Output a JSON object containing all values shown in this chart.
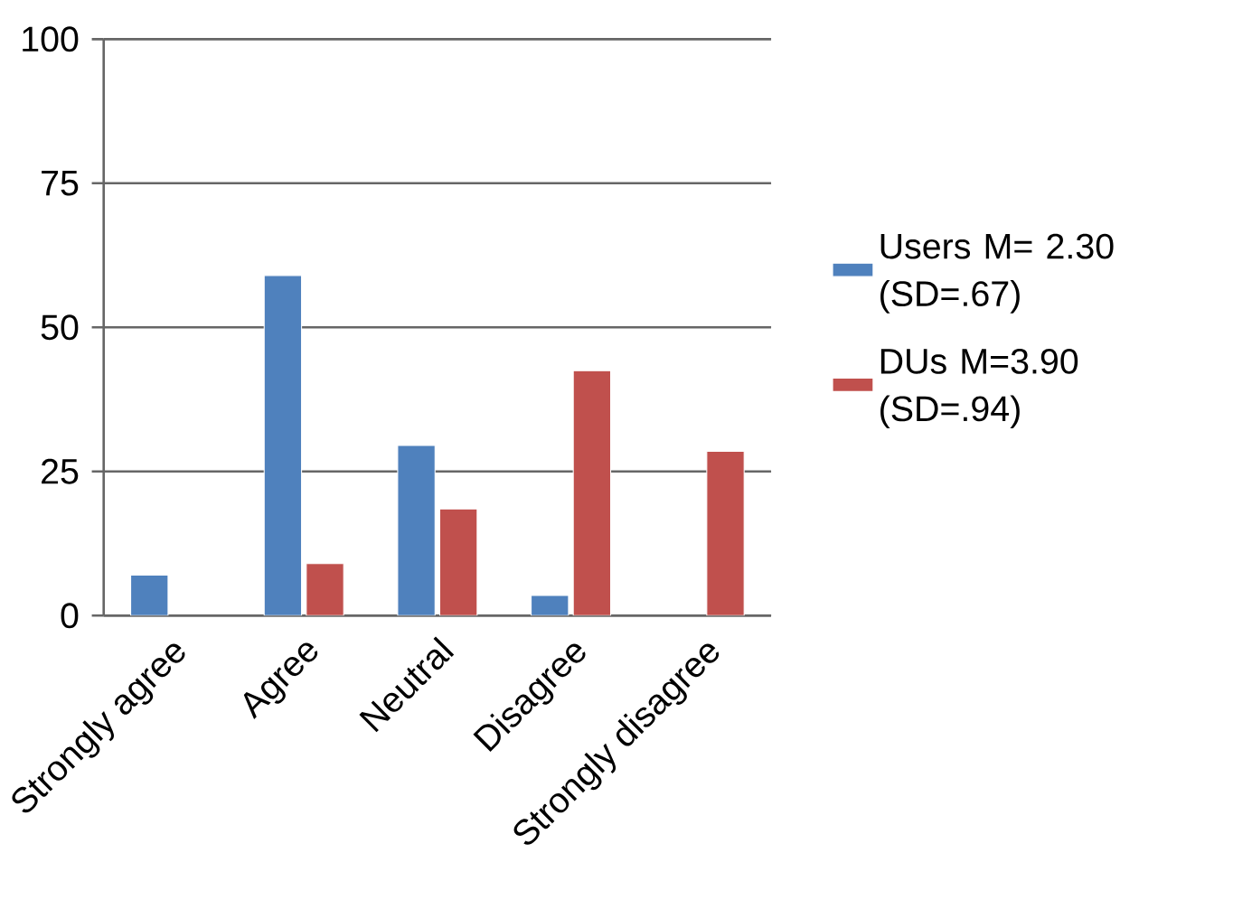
{
  "chart_data": {
    "type": "bar",
    "categories": [
      "Strongly agree",
      "Agree",
      "Neutral",
      "Disagree",
      "Strongly disagree"
    ],
    "series": [
      {
        "name": "Users M= 2.30 (SD=.67)",
        "color": "#4f81bd",
        "values": [
          7,
          59,
          29.5,
          3.5,
          null
        ]
      },
      {
        "name": "DUs M=3.90 (SD=.94)",
        "color": "#c0504d",
        "values": [
          null,
          9,
          18.5,
          42.5,
          28.5
        ]
      }
    ],
    "ylim": [
      0,
      100
    ],
    "yticks": [
      0,
      25,
      50,
      75,
      100
    ],
    "grid": "y",
    "legend": "right"
  }
}
